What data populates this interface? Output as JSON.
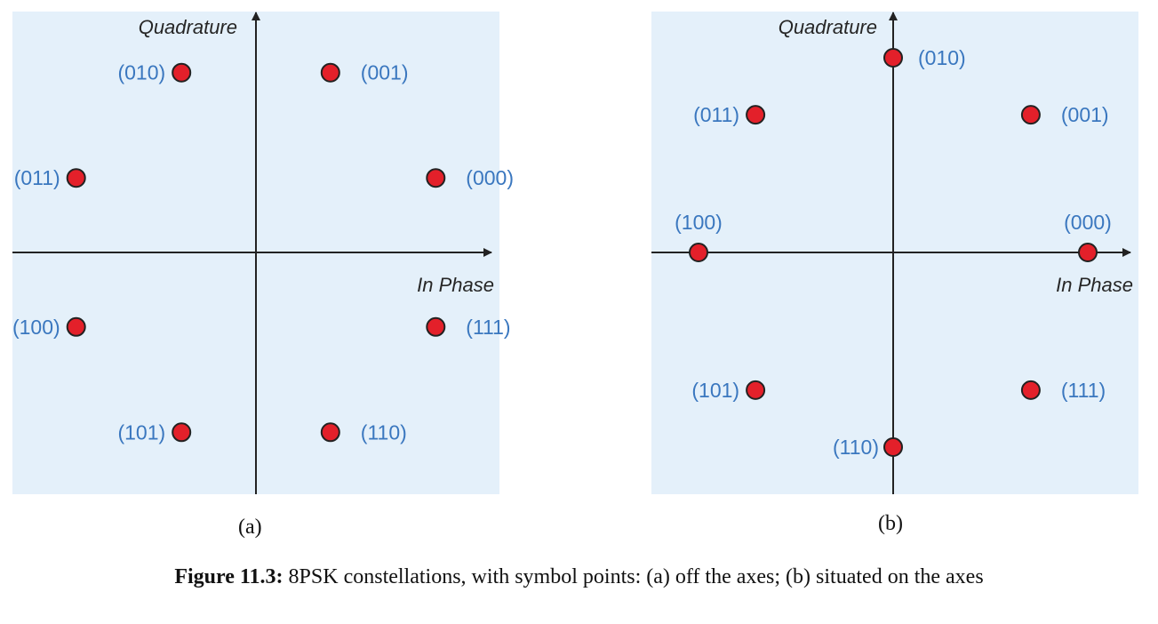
{
  "figures": [
    {
      "id": "a",
      "sublabel": "(a)",
      "y_axis_label": "Quadrature",
      "x_axis_label": "In Phase",
      "points": [
        {
          "label": "(000)",
          "angle_deg": 22.5
        },
        {
          "label": "(001)",
          "angle_deg": 67.5
        },
        {
          "label": "(010)",
          "angle_deg": 112.5
        },
        {
          "label": "(011)",
          "angle_deg": 157.5
        },
        {
          "label": "(100)",
          "angle_deg": 202.5
        },
        {
          "label": "(101)",
          "angle_deg": 247.5
        },
        {
          "label": "(110)",
          "angle_deg": 292.5
        },
        {
          "label": "(111)",
          "angle_deg": 337.5
        }
      ]
    },
    {
      "id": "b",
      "sublabel": "(b)",
      "y_axis_label": "Quadrature",
      "x_axis_label": "In Phase",
      "points": [
        {
          "label": "(000)",
          "angle_deg": 0
        },
        {
          "label": "(001)",
          "angle_deg": 45
        },
        {
          "label": "(010)",
          "angle_deg": 90
        },
        {
          "label": "(011)",
          "angle_deg": 135
        },
        {
          "label": "(100)",
          "angle_deg": 180
        },
        {
          "label": "(101)",
          "angle_deg": 225
        },
        {
          "label": "(110)",
          "angle_deg": 270
        },
        {
          "label": "(111)",
          "angle_deg": 315
        }
      ]
    }
  ],
  "caption": {
    "prefix": "Figure 11.3:",
    "text": " 8PSK constellations, with symbol points: (a) off the axes; (b) situated on the axes"
  },
  "colors": {
    "panel_background": "#e4f0fa",
    "point_fill": "#e3202a",
    "point_stroke": "#222222",
    "label_color": "#3a77bf",
    "axis_color": "#222222"
  }
}
